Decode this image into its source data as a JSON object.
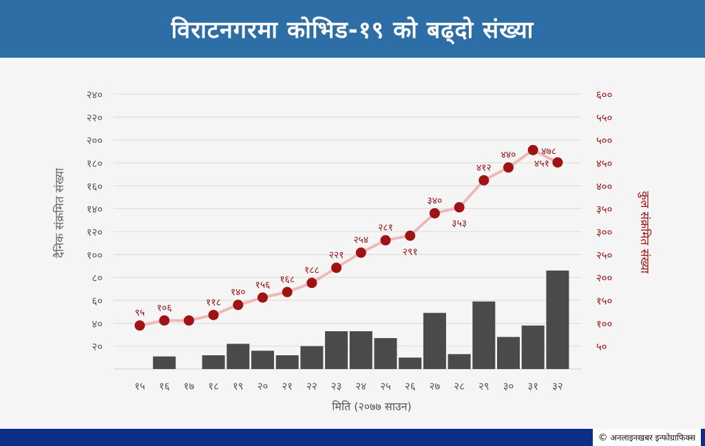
{
  "header": {
    "title": "विराटनगरमा कोभिड-१९ को  बढ्दो संख्या"
  },
  "footer": {
    "copyright_symbol": "©",
    "credit": "अनलाइनखबर इन्फोग्राफिक्स"
  },
  "chart_data": {
    "type": "bar+line",
    "xlabel": "मिति (२०७७ साउन)",
    "ylabel_left": "दैनिक संक्रमित संख्या",
    "ylabel_right": "कुल संक्रमित संख्या",
    "categories": [
      "१५",
      "१६",
      "१७",
      "१८",
      "१९",
      "२०",
      "२१",
      "२२",
      "२३",
      "२४",
      "२५",
      "२६",
      "२७",
      "२८",
      "२९",
      "३०",
      "३१",
      "३२"
    ],
    "left_axis": {
      "ylim": [
        0,
        240
      ],
      "ticks": [
        20,
        40,
        60,
        80,
        100,
        120,
        140,
        160,
        180,
        200,
        220,
        240
      ],
      "tick_labels": [
        "२०",
        "४०",
        "६०",
        "८०",
        "१००",
        "१२०",
        "१४०",
        "१६०",
        "१८०",
        "२००",
        "२२०",
        "२४०"
      ]
    },
    "right_axis": {
      "ylim": [
        0,
        600
      ],
      "ticks": [
        50,
        100,
        150,
        200,
        250,
        300,
        350,
        400,
        450,
        500,
        550,
        600
      ],
      "tick_labels": [
        "५०",
        "१००",
        "१५०",
        "२००",
        "२५०",
        "३००",
        "३५०",
        "४००",
        "४५०",
        "५००",
        "५५०",
        "६००"
      ]
    },
    "series": [
      {
        "type": "bar",
        "axis": "left",
        "color": "#4a4a4a",
        "values": [
          0,
          11,
          0,
          12,
          22,
          16,
          12,
          20,
          33,
          33,
          27,
          10,
          49,
          13,
          59,
          28,
          38,
          86
        ]
      },
      {
        "type": "line",
        "axis": "right",
        "color": "#a11212",
        "line_color": "#f0b7b7",
        "values": [
          95,
          106,
          106,
          118,
          140,
          156,
          168,
          188,
          221,
          254,
          281,
          291,
          340,
          353,
          412,
          440,
          478,
          451
        ],
        "labels": [
          "९५",
          "१०६",
          "",
          "११८",
          "१४०",
          "१५६",
          "१६८",
          "१८८",
          "२२१",
          "२५४",
          "२८१",
          "२९१",
          "३४०",
          "३५३",
          "४१२",
          "४४०",
          "४७८",
          "४५१"
        ],
        "label_pos": [
          "above",
          "above",
          "",
          "above",
          "above",
          "above",
          "above",
          "above",
          "above",
          "above",
          "above",
          "below",
          "above",
          "below",
          "above",
          "above",
          "right",
          "left"
        ]
      }
    ],
    "grid": true
  },
  "colors": {
    "header": "#2e6ea6",
    "footer": "#0b2f87",
    "bar": "#4a4a4a",
    "dot": "#a11212",
    "line": "#f0b7b7"
  }
}
